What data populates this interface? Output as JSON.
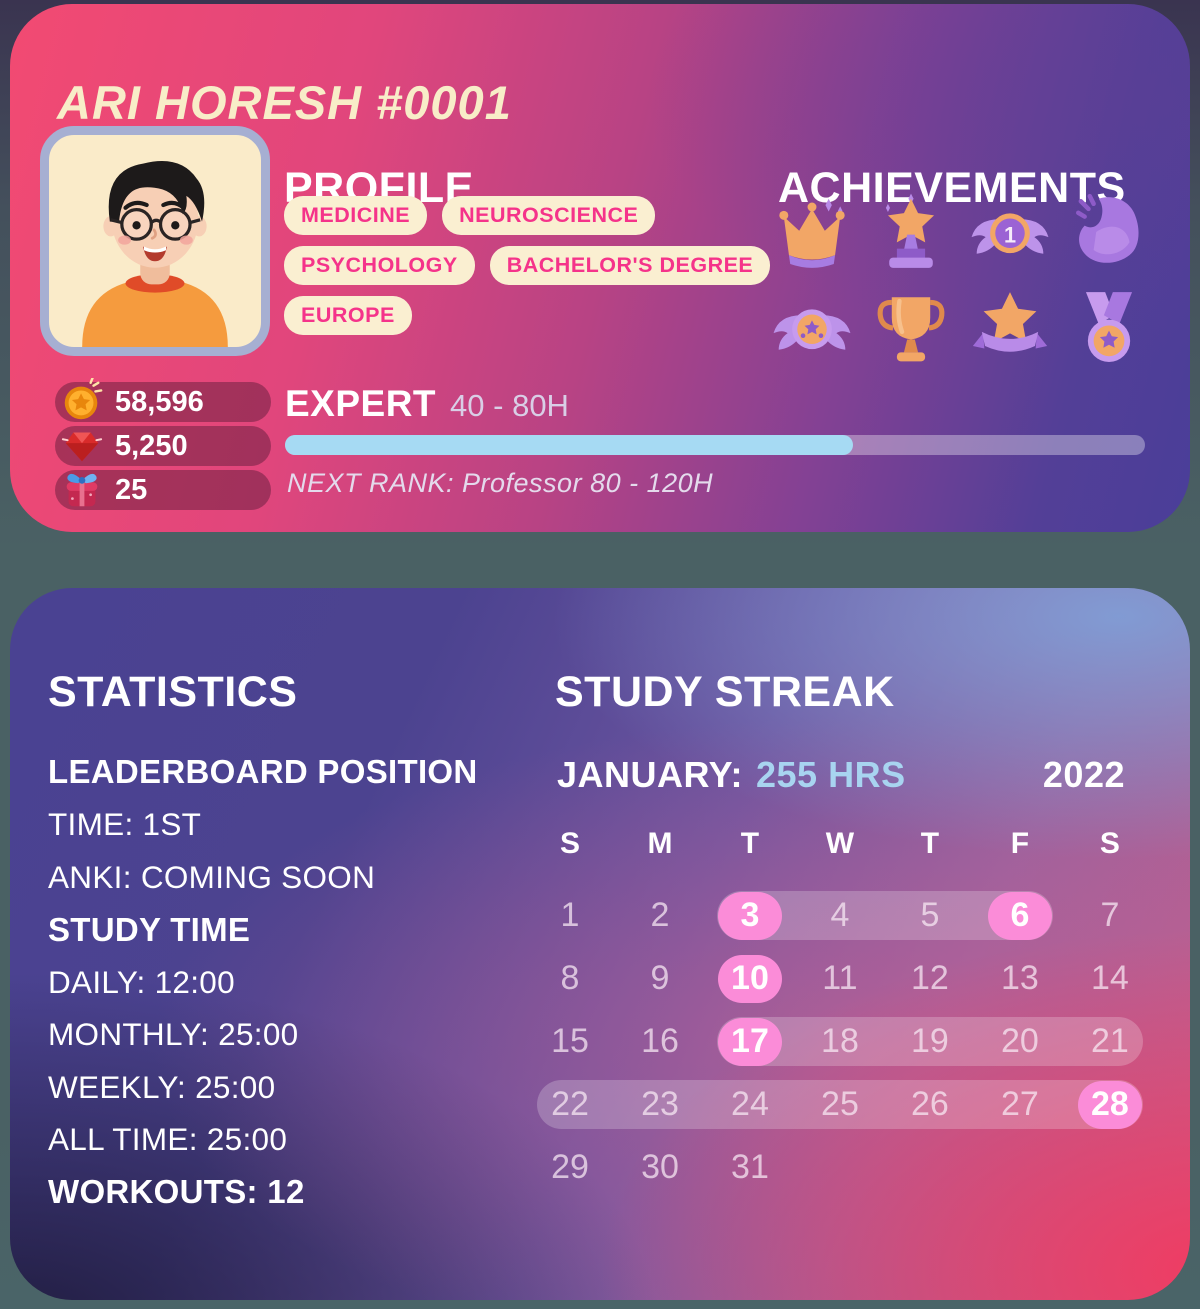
{
  "profile_card": {
    "title": "ARI HORESH #0001",
    "profile_heading": "PROFILE",
    "achievements_heading": "ACHIEVEMENTS",
    "tag_rows": [
      [
        "MEDICINE",
        "NEUROSCIENCE"
      ],
      [
        "PSYCHOLOGY",
        "BACHELOR'S DEGREE"
      ],
      [
        "EUROPE"
      ]
    ],
    "achievements": [
      {
        "icon": "crown-icon"
      },
      {
        "icon": "star-trophy-icon"
      },
      {
        "icon": "winged-first-medal-icon"
      },
      {
        "icon": "bicep-icon"
      },
      {
        "icon": "winged-star-medal-icon"
      },
      {
        "icon": "trophy-icon"
      },
      {
        "icon": "star-ribbon-icon"
      },
      {
        "icon": "medal-icon"
      }
    ],
    "currencies": [
      {
        "icon": "coin-icon",
        "value": "58,596"
      },
      {
        "icon": "gem-icon",
        "value": "5,250"
      },
      {
        "icon": "gift-icon",
        "value": "25"
      }
    ],
    "rank": {
      "label": "EXPERT",
      "range": "40 - 80H",
      "progress_pct": 66,
      "next_rank": "NEXT RANK: Professor 80 - 120H"
    }
  },
  "stats_card": {
    "statistics_heading": "STATISTICS",
    "study_streak_heading": "STUDY STREAK",
    "lines": [
      {
        "text": "LEADERBOARD POSITION",
        "bold": true
      },
      {
        "text": "TIME: 1ST",
        "bold": false
      },
      {
        "text": "ANKI: COMING SOON",
        "bold": false
      },
      {
        "text": "STUDY TIME",
        "bold": true
      },
      {
        "text": "DAILY: 12:00",
        "bold": false
      },
      {
        "text": "MONTHLY: 25:00",
        "bold": false
      },
      {
        "text": "WEEKLY: 25:00",
        "bold": false
      },
      {
        "text": "ALL TIME: 25:00",
        "bold": false
      },
      {
        "text": "WORKOUTS:  12",
        "bold": true
      }
    ],
    "calendar": {
      "month_label": "JANUARY:",
      "hours": "255 HRS",
      "year": "2022",
      "day_headers": [
        "S",
        "M",
        "T",
        "W",
        "T",
        "F",
        "S"
      ],
      "weeks": [
        {
          "days": [
            {
              "n": "1"
            },
            {
              "n": "2"
            },
            {
              "n": "3",
              "pill": true
            },
            {
              "n": "4"
            },
            {
              "n": "5"
            },
            {
              "n": "6",
              "pill": true
            },
            {
              "n": "7"
            }
          ],
          "band": {
            "from": 2,
            "to": 5
          }
        },
        {
          "days": [
            {
              "n": "8"
            },
            {
              "n": "9"
            },
            {
              "n": "10",
              "pill": true
            },
            {
              "n": "11"
            },
            {
              "n": "12"
            },
            {
              "n": "13"
            },
            {
              "n": "14"
            }
          ]
        },
        {
          "days": [
            {
              "n": "15"
            },
            {
              "n": "16"
            },
            {
              "n": "17",
              "pill": true
            },
            {
              "n": "18"
            },
            {
              "n": "19"
            },
            {
              "n": "20"
            },
            {
              "n": "21"
            }
          ],
          "band": {
            "from": 2,
            "to": 6
          }
        },
        {
          "days": [
            {
              "n": "22"
            },
            {
              "n": "23"
            },
            {
              "n": "24"
            },
            {
              "n": "25"
            },
            {
              "n": "26"
            },
            {
              "n": "27"
            },
            {
              "n": "28",
              "pill": true
            }
          ],
          "band": {
            "from": 0,
            "to": 6
          }
        },
        {
          "days": [
            {
              "n": "29"
            },
            {
              "n": "30"
            },
            {
              "n": "31"
            }
          ]
        }
      ]
    }
  },
  "colors": {
    "accent_pill_pink": "#FB8CD8",
    "progress_fill_blue": "#A6DAF3",
    "tag_text_pink": "#F5338A",
    "tag_bg_cream": "#FAEFD1",
    "title_cream": "#F8EDC8",
    "hours_blue": "#A8D4F0"
  }
}
